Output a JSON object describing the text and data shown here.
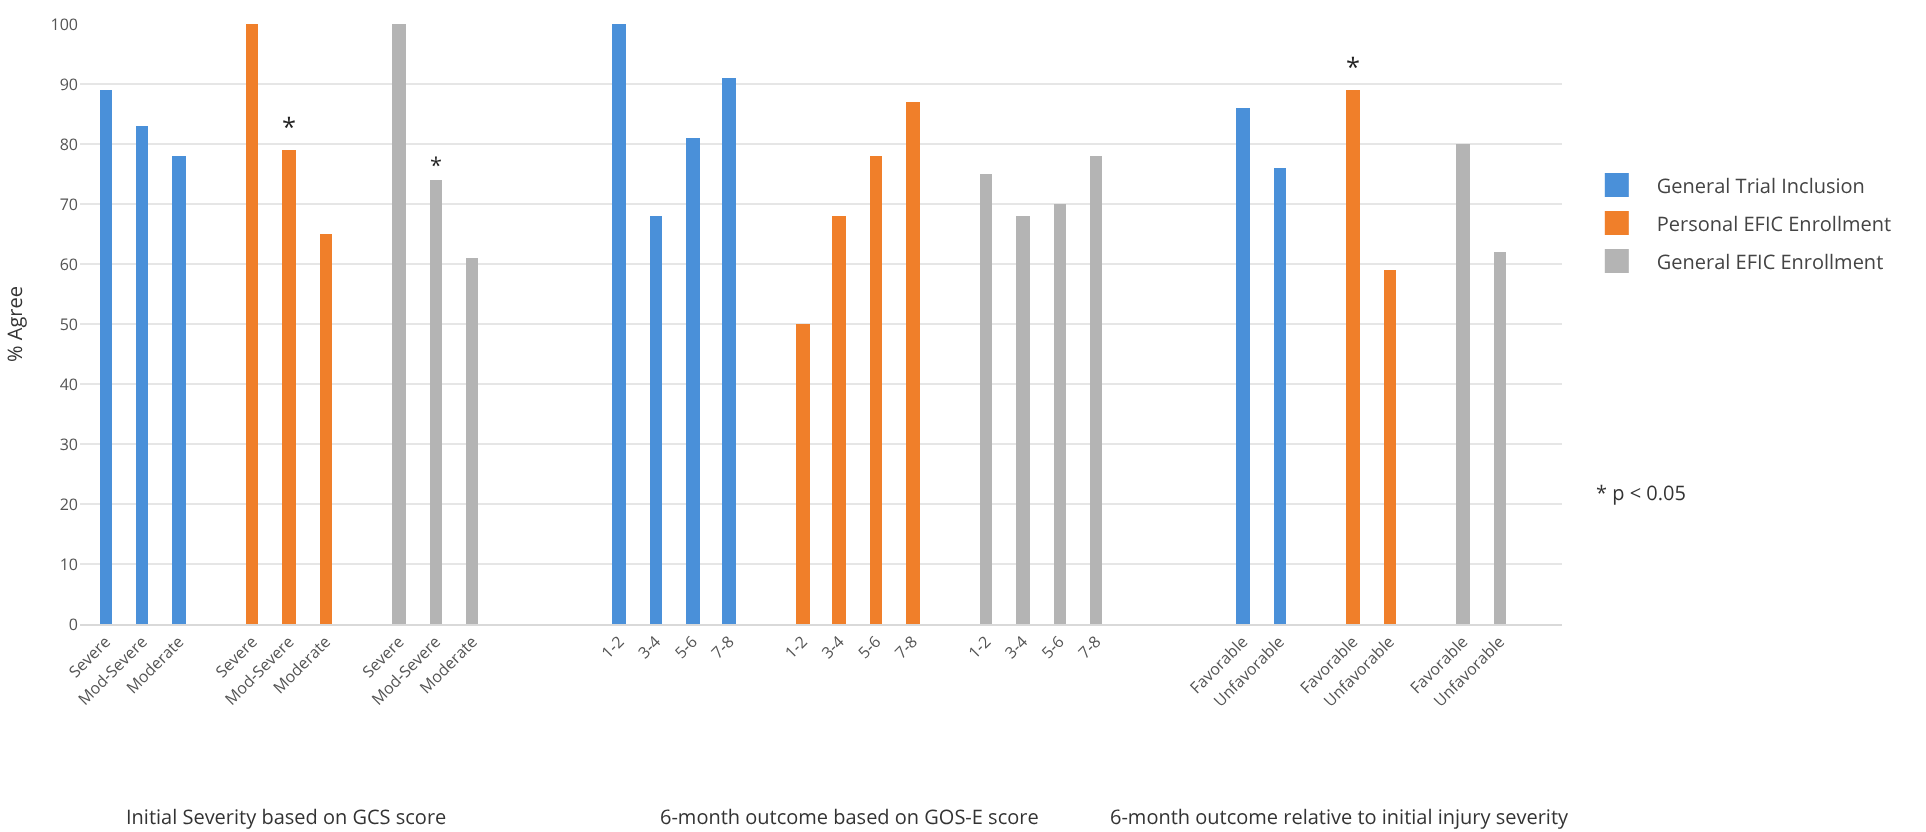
{
  "chart_data": {
    "type": "bar",
    "ylabel": "% Agree",
    "categories": [
      "Severe",
      "Mod-Severe",
      "Moderate",
      null,
      "Severe",
      "Mod-Severe",
      "Moderate",
      null,
      "Severe",
      "Mod-Severe",
      "Moderate",
      null,
      null,
      null,
      "1-2",
      "3-4",
      "5-6",
      "7-8",
      null,
      "1-2",
      "3-4",
      "5-6",
      "7-8",
      null,
      "1-2",
      "3-4",
      "5-6",
      "7-8",
      null,
      null,
      null,
      "Favorable",
      "Unfavorable",
      null,
      "Favorable",
      "Unfavorable",
      null,
      "Favorable",
      "Unfavorable",
      null
    ],
    "series": [
      {
        "name": "General Trial Inclusion",
        "color": "#4a90d9",
        "values": [
          89,
          83,
          78,
          null,
          null,
          null,
          null,
          null,
          null,
          null,
          null,
          null,
          null,
          null,
          100,
          68,
          81,
          91,
          null,
          null,
          null,
          null,
          null,
          null,
          null,
          null,
          null,
          null,
          null,
          null,
          null,
          86,
          76,
          null,
          null,
          null,
          null,
          null,
          null,
          null
        ]
      },
      {
        "name": "Personal EFIC Enrollment",
        "color": "#f07f2a",
        "values": [
          null,
          null,
          null,
          null,
          100,
          79,
          65,
          null,
          null,
          null,
          null,
          null,
          null,
          null,
          null,
          null,
          null,
          null,
          null,
          50,
          68,
          78,
          87,
          null,
          null,
          null,
          null,
          null,
          null,
          null,
          null,
          null,
          null,
          null,
          89,
          59,
          null,
          null,
          null,
          null
        ],
        "value_labels": [
          null,
          null,
          null,
          null,
          null,
          "*",
          null,
          null,
          null,
          null,
          null,
          null,
          null,
          null,
          null,
          null,
          null,
          null,
          null,
          null,
          null,
          null,
          null,
          null,
          null,
          null,
          null,
          null,
          null,
          null,
          null,
          null,
          null,
          null,
          "*",
          null,
          null,
          null,
          null,
          null
        ]
      },
      {
        "name": "General EFIC Enrollment",
        "color": "#b4b4b4",
        "values": [
          null,
          null,
          null,
          null,
          null,
          null,
          null,
          null,
          100,
          74,
          61,
          null,
          null,
          null,
          null,
          null,
          null,
          null,
          null,
          null,
          null,
          null,
          null,
          null,
          75,
          68,
          70,
          78,
          null,
          null,
          null,
          null,
          null,
          null,
          null,
          null,
          null,
          80,
          62,
          null
        ],
        "value_labels": [
          null,
          null,
          null,
          null,
          null,
          null,
          null,
          null,
          null,
          "*",
          null,
          null,
          null,
          null,
          null,
          null,
          null,
          null,
          null,
          null,
          null,
          null,
          null,
          null,
          null,
          null,
          null,
          null,
          null,
          null,
          null,
          null,
          null,
          null,
          null,
          null,
          null,
          null,
          null,
          null
        ]
      }
    ],
    "ylim": [
      0,
      100
    ],
    "yticks": [
      0,
      10,
      20,
      30,
      40,
      50,
      60,
      70,
      80,
      90,
      100
    ],
    "grid": "y",
    "legend": "right",
    "annotations": [
      "Initial Severity based on GCS score",
      "6-month outcome based on GOS-E score",
      "6-month outcome relative to initial injury severity",
      "* p < 0.05"
    ]
  }
}
